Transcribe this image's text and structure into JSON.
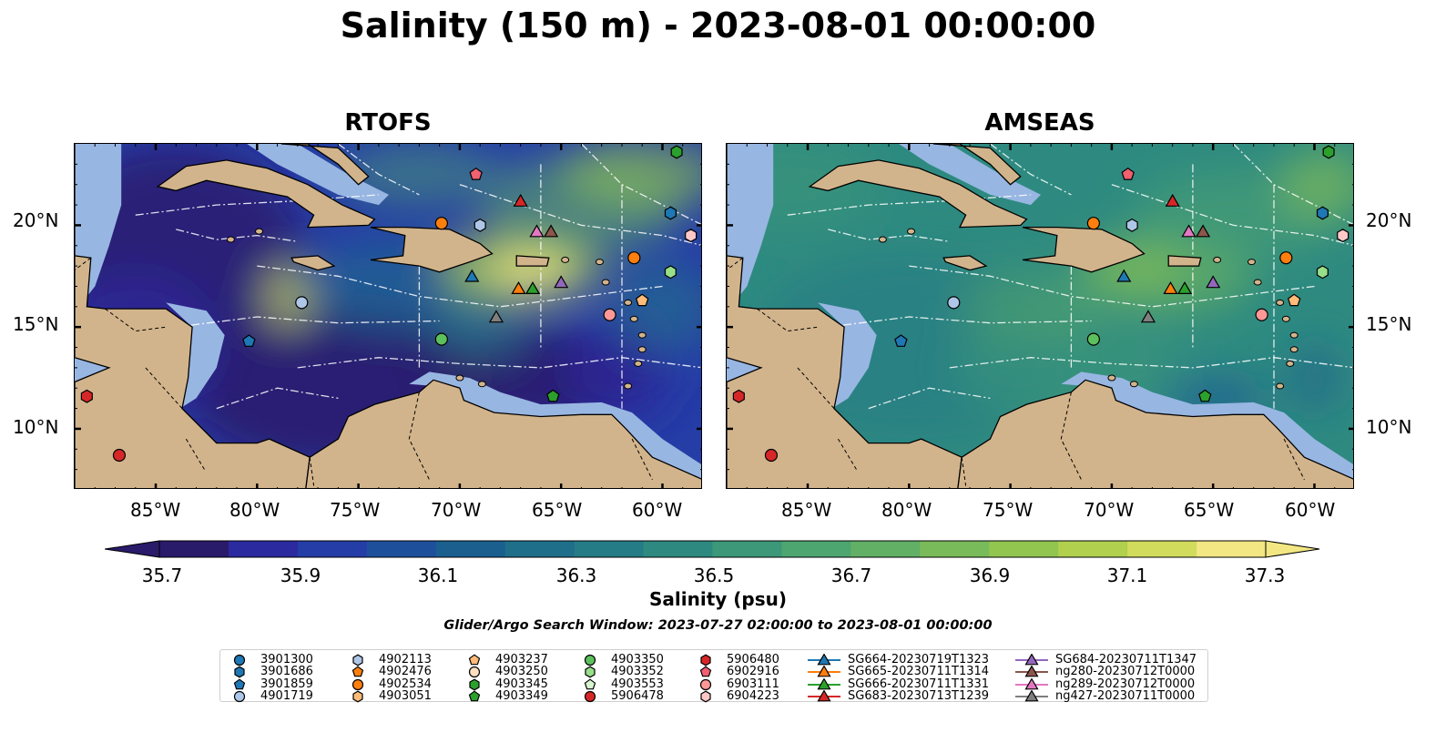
{
  "title": "Salinity (150 m) - 2023-08-01 00:00:00",
  "panels": [
    {
      "title": "RTOFS"
    },
    {
      "title": "AMSEAS"
    }
  ],
  "axes": {
    "lon_labels": [
      "85°W",
      "80°W",
      "75°W",
      "70°W",
      "65°W",
      "60°W"
    ],
    "lat_labels": [
      "20°N",
      "15°N",
      "10°N"
    ],
    "lon_range": [
      -89,
      -58
    ],
    "lat_range": [
      7,
      24
    ]
  },
  "colorbar": {
    "label": "Salinity (psu)",
    "ticks": [
      "35.7",
      "35.9",
      "36.1",
      "36.3",
      "36.5",
      "36.7",
      "36.9",
      "37.1",
      "37.3"
    ],
    "range": [
      35.6,
      37.4
    ],
    "colors": [
      "#2a1a6a",
      "#2b2a9e",
      "#253da6",
      "#1e4f9b",
      "#1b5f8f",
      "#1f6e8a",
      "#257c86",
      "#2e8a80",
      "#3c9878",
      "#4da56f",
      "#62b065",
      "#79bb5a",
      "#92c550",
      "#b0d04e",
      "#d1dc5c",
      "#f2e782"
    ]
  },
  "search_window": "Glider/Argo Search Window: 2023-07-27 02:00:00 to 2023-08-01 00:00:00",
  "colors": {
    "land": "#d2b48c",
    "shelf": "#98b6e2"
  },
  "legend": {
    "items": [
      {
        "label": "3901300",
        "marker": "circle",
        "color": "#1f77b4"
      },
      {
        "label": "3901686",
        "marker": "hexagon",
        "color": "#1f77b4"
      },
      {
        "label": "3901859",
        "marker": "pentagon",
        "color": "#1f77b4"
      },
      {
        "label": "4901719",
        "marker": "circle",
        "color": "#aec7e8"
      },
      {
        "label": "4902113",
        "marker": "hexagon",
        "color": "#aec7e8"
      },
      {
        "label": "4902476",
        "marker": "pentagon",
        "color": "#ff7f0e"
      },
      {
        "label": "4902534",
        "marker": "circle",
        "color": "#ff7f0e"
      },
      {
        "label": "4903051",
        "marker": "hexagon",
        "color": "#ffbb78"
      },
      {
        "label": "4903237",
        "marker": "pentagon",
        "color": "#ffbb78"
      },
      {
        "label": "4903250",
        "marker": "circle",
        "color": "#ffe0c0"
      },
      {
        "label": "4903345",
        "marker": "hexagon",
        "color": "#2ca02c"
      },
      {
        "label": "4903349",
        "marker": "pentagon",
        "color": "#2ca02c"
      },
      {
        "label": "4903350",
        "marker": "circle",
        "color": "#5cc05c"
      },
      {
        "label": "4903352",
        "marker": "hexagon",
        "color": "#98df8a"
      },
      {
        "label": "4903553",
        "marker": "pentagon",
        "color": "#d8f5d0"
      },
      {
        "label": "5906478",
        "marker": "circle",
        "color": "#d62728"
      },
      {
        "label": "5906480",
        "marker": "hexagon",
        "color": "#d62728"
      },
      {
        "label": "6902916",
        "marker": "pentagon",
        "color": "#f06070"
      },
      {
        "label": "6903111",
        "marker": "circle",
        "color": "#ff9896"
      },
      {
        "label": "6904223",
        "marker": "hexagon",
        "color": "#ffc8c8"
      },
      {
        "label": "SG664-20230719T1323",
        "marker": "triangle",
        "color": "#1f77b4"
      },
      {
        "label": "SG665-20230711T1314",
        "marker": "triangle",
        "color": "#ff7f0e"
      },
      {
        "label": "SG666-20230711T1331",
        "marker": "triangle",
        "color": "#2ca02c"
      },
      {
        "label": "SG683-20230713T1239",
        "marker": "triangle",
        "color": "#d62728"
      },
      {
        "label": "SG684-20230711T1347",
        "marker": "triangle",
        "color": "#9467bd"
      },
      {
        "label": "ng280-20230712T0000",
        "marker": "triangle",
        "color": "#8c564b"
      },
      {
        "label": "ng289-20230712T0000",
        "marker": "triangle",
        "color": "#e377c2"
      },
      {
        "label": "ng427-20230711T0000",
        "marker": "triangle",
        "color": "#7f7f7f"
      }
    ]
  },
  "markers": [
    {
      "lon": -59.3,
      "lat": 23.6,
      "marker": "hexagon",
      "color": "#2ca02c"
    },
    {
      "lon": -69.2,
      "lat": 22.5,
      "marker": "pentagon",
      "color": "#f06070"
    },
    {
      "lon": -67.0,
      "lat": 21.2,
      "marker": "triangle",
      "color": "#d62728"
    },
    {
      "lon": -59.6,
      "lat": 20.6,
      "marker": "hexagon",
      "color": "#1f77b4"
    },
    {
      "lon": -70.9,
      "lat": 20.1,
      "marker": "circle",
      "color": "#ff7f0e"
    },
    {
      "lon": -69.0,
      "lat": 20.0,
      "marker": "hexagon",
      "color": "#aec7e8"
    },
    {
      "lon": -66.2,
      "lat": 19.7,
      "marker": "triangle",
      "color": "#e377c2"
    },
    {
      "lon": -65.5,
      "lat": 19.7,
      "marker": "triangle",
      "color": "#8c564b"
    },
    {
      "lon": -58.6,
      "lat": 19.5,
      "marker": "hexagon",
      "color": "#ffc8c8"
    },
    {
      "lon": -61.4,
      "lat": 18.4,
      "marker": "circle",
      "color": "#ff7f0e"
    },
    {
      "lon": -59.6,
      "lat": 17.7,
      "marker": "hexagon",
      "color": "#98df8a"
    },
    {
      "lon": -69.4,
      "lat": 17.5,
      "marker": "triangle",
      "color": "#1f77b4"
    },
    {
      "lon": -65.0,
      "lat": 17.2,
      "marker": "triangle",
      "color": "#9467bd"
    },
    {
      "lon": -67.1,
      "lat": 16.9,
      "marker": "triangle",
      "color": "#ff7f0e"
    },
    {
      "lon": -66.4,
      "lat": 16.9,
      "marker": "triangle",
      "color": "#2ca02c"
    },
    {
      "lon": -61.0,
      "lat": 16.3,
      "marker": "pentagon",
      "color": "#ffbb78"
    },
    {
      "lon": -77.8,
      "lat": 16.2,
      "marker": "circle",
      "color": "#aec7e8"
    },
    {
      "lon": -62.6,
      "lat": 15.6,
      "marker": "circle",
      "color": "#ff9896"
    },
    {
      "lon": -68.2,
      "lat": 15.5,
      "marker": "triangle",
      "color": "#7f7f7f"
    },
    {
      "lon": -70.9,
      "lat": 14.4,
      "marker": "circle",
      "color": "#5cc05c"
    },
    {
      "lon": -80.4,
      "lat": 14.3,
      "marker": "pentagon",
      "color": "#1f77b4"
    },
    {
      "lon": -88.4,
      "lat": 11.6,
      "marker": "hexagon",
      "color": "#d62728"
    },
    {
      "lon": -65.4,
      "lat": 11.6,
      "marker": "pentagon",
      "color": "#2ca02c"
    },
    {
      "lon": -86.8,
      "lat": 8.7,
      "marker": "circle",
      "color": "#d62728"
    }
  ]
}
